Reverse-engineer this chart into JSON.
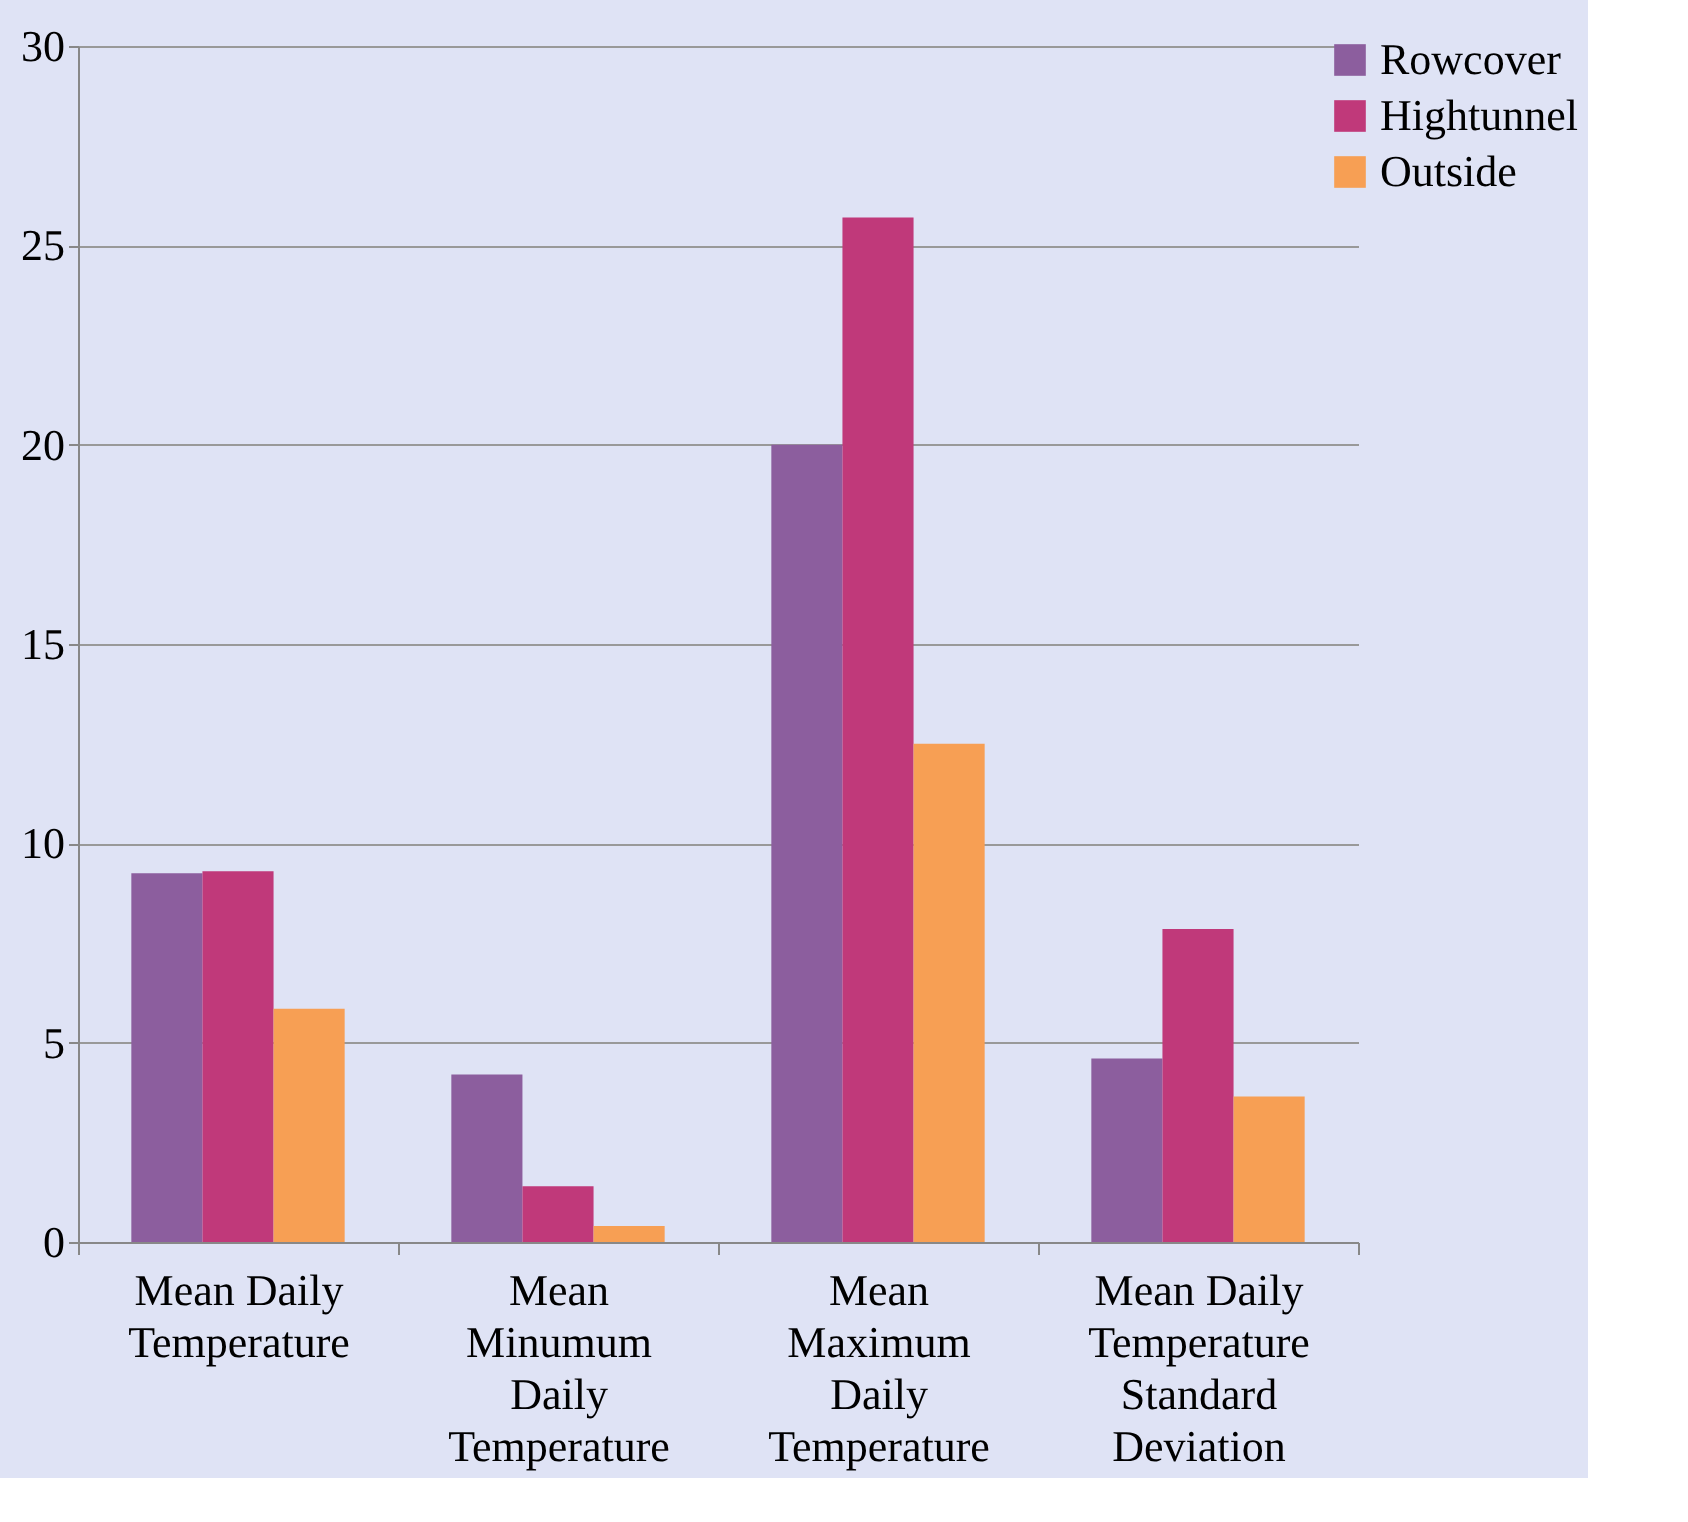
{
  "chart_data": {
    "type": "bar",
    "categories": [
      "Mean Daily Temperature",
      "Mean Minumum Daily Temperature",
      "Mean Maximum Daily Temperature",
      "Mean Daily Temperature Standard Deviation"
    ],
    "series": [
      {
        "name": "Rowcover",
        "color": "#8c5e9e",
        "values": [
          9.25,
          4.2,
          20.0,
          4.6
        ]
      },
      {
        "name": "Hightunnel",
        "color": "#c0397a",
        "values": [
          9.3,
          1.4,
          25.7,
          7.85
        ]
      },
      {
        "name": "Outside",
        "color": "#f79f54",
        "values": [
          5.85,
          0.4,
          12.5,
          3.65
        ]
      }
    ],
    "ylim": [
      0,
      30
    ],
    "yticks": [
      0,
      5,
      10,
      15,
      20,
      25,
      30
    ],
    "grid": "y",
    "legend": "top right"
  }
}
